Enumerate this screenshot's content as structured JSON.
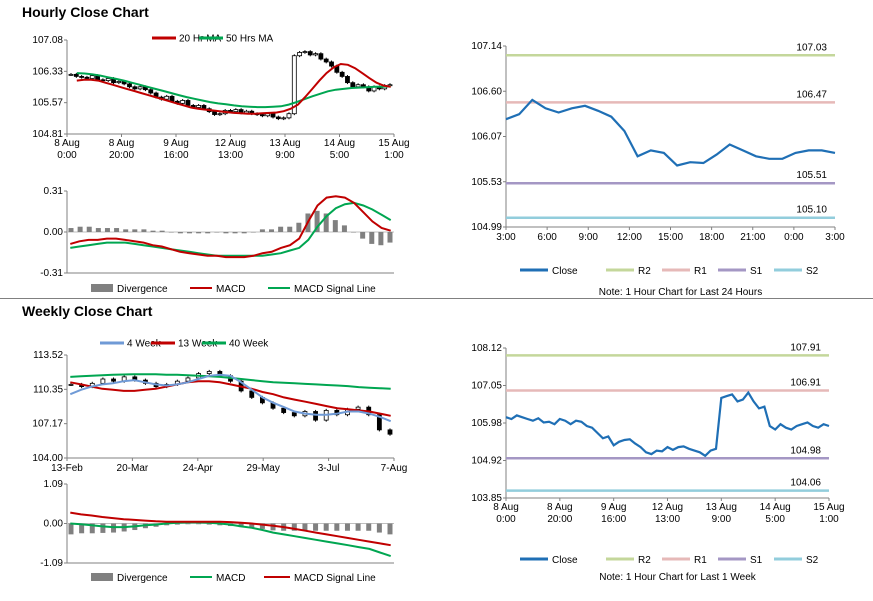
{
  "sections": {
    "hourly_title": "Hourly Close Chart",
    "weekly_title": "Weekly Close Chart"
  },
  "colors": {
    "close": "#1f6fb5",
    "ma20": "#c00000",
    "ma50": "#00a651",
    "r2": "#c4d79b",
    "r1": "#e6b9b8",
    "s1": "#a497c4",
    "s2": "#92cddc",
    "divergence": "#808080",
    "wk4": "#6f9ad6",
    "wk13": "#c00000",
    "wk40": "#00a651"
  },
  "chart_data": [
    {
      "id": "hourly_price",
      "type": "candlestick-line",
      "ylim": [
        104.81,
        107.08
      ],
      "yticks": [
        "107.08",
        "106.33",
        "105.57",
        "104.81"
      ],
      "xticks": [
        [
          "8 Aug",
          "0:00"
        ],
        [
          "8 Aug",
          "20:00"
        ],
        [
          "9 Aug",
          "16:00"
        ],
        [
          "12 Aug",
          "13:00"
        ],
        [
          "13 Aug",
          "9:00"
        ],
        [
          "14 Aug",
          "5:00"
        ],
        [
          "15 Aug",
          "1:00"
        ]
      ],
      "legend": [
        "20 Hr MA",
        "50 Hrs MA"
      ],
      "closes": [
        106.25,
        106.2,
        106.18,
        106.15,
        106.22,
        106.12,
        106.1,
        106.15,
        106.05,
        106.08,
        106.02,
        105.95,
        105.9,
        105.95,
        105.88,
        105.8,
        105.7,
        105.65,
        105.72,
        105.6,
        105.55,
        105.62,
        105.5,
        105.45,
        105.5,
        105.42,
        105.35,
        105.28,
        105.3,
        105.38,
        105.35,
        105.4,
        105.32,
        105.36,
        105.3,
        105.28,
        105.25,
        105.3,
        105.22,
        105.18,
        105.2,
        105.3,
        106.7,
        106.78,
        106.8,
        106.72,
        106.75,
        106.62,
        106.55,
        106.45,
        106.3,
        106.2,
        106.05,
        105.95,
        106.0,
        105.95,
        105.85,
        105.95,
        105.9,
        105.98,
        106.0
      ],
      "ma20": [
        106.1,
        106.12,
        106.12,
        106.1,
        106.05,
        106.0,
        105.95,
        105.9,
        105.85,
        105.8,
        105.75,
        105.7,
        105.65,
        105.6,
        105.55,
        105.5,
        105.45,
        105.42,
        105.4,
        105.38,
        105.36,
        105.34,
        105.32,
        105.31,
        105.3,
        105.3,
        105.31,
        105.32,
        105.33,
        105.36,
        105.42,
        105.52,
        105.7,
        105.9,
        106.1,
        106.28,
        106.42,
        106.5,
        106.48,
        106.4,
        106.28,
        106.16,
        106.05,
        105.98,
        105.95
      ],
      "ma50": [
        106.28,
        106.27,
        106.25,
        106.22,
        106.18,
        106.14,
        106.1,
        106.05,
        106.0,
        105.95,
        105.9,
        105.85,
        105.8,
        105.75,
        105.7,
        105.66,
        105.62,
        105.58,
        105.55,
        105.53,
        105.5,
        105.48,
        105.47,
        105.46,
        105.46,
        105.47,
        105.48,
        105.52,
        105.58,
        105.65,
        105.72,
        105.78,
        105.84,
        105.88,
        105.9,
        105.92,
        105.93,
        105.94,
        105.95,
        105.95,
        105.96
      ]
    },
    {
      "id": "hourly_macd",
      "type": "macd",
      "ylim": [
        -0.31,
        0.31
      ],
      "yticks": [
        "0.31",
        "0.00",
        "-0.31"
      ],
      "legend": [
        "Divergence",
        "MACD",
        "MACD Signal Line"
      ],
      "macd": [
        -0.09,
        -0.07,
        -0.06,
        -0.06,
        -0.05,
        -0.05,
        -0.06,
        -0.07,
        -0.08,
        -0.1,
        -0.11,
        -0.13,
        -0.15,
        -0.16,
        -0.17,
        -0.18,
        -0.18,
        -0.19,
        -0.19,
        -0.19,
        -0.18,
        -0.16,
        -0.15,
        -0.12,
        -0.1,
        -0.05,
        0.08,
        0.2,
        0.26,
        0.27,
        0.26,
        0.22,
        0.15,
        0.08,
        0.03,
        0.01
      ],
      "signal": [
        -0.12,
        -0.11,
        -0.1,
        -0.09,
        -0.08,
        -0.08,
        -0.08,
        -0.09,
        -0.1,
        -0.11,
        -0.12,
        -0.13,
        -0.14,
        -0.15,
        -0.16,
        -0.17,
        -0.18,
        -0.18,
        -0.18,
        -0.18,
        -0.18,
        -0.18,
        -0.17,
        -0.16,
        -0.14,
        -0.12,
        -0.06,
        0.04,
        0.12,
        0.18,
        0.21,
        0.22,
        0.2,
        0.17,
        0.13,
        0.09
      ]
    },
    {
      "id": "hourly_24h",
      "type": "line",
      "ylim": [
        104.99,
        107.14
      ],
      "yticks": [
        "107.14",
        "106.60",
        "106.07",
        "105.53",
        "104.99"
      ],
      "xticks": [
        "3:00",
        "6:00",
        "9:00",
        "12:00",
        "15:00",
        "18:00",
        "21:00",
        "0:00",
        "3:00"
      ],
      "close": [
        106.27,
        106.33,
        106.5,
        106.4,
        106.35,
        106.4,
        106.43,
        106.37,
        106.3,
        106.13,
        105.83,
        105.9,
        105.87,
        105.72,
        105.76,
        105.75,
        105.85,
        105.97,
        105.9,
        105.83,
        105.8,
        105.8,
        105.87,
        105.9,
        105.9,
        105.87
      ],
      "levels": {
        "R2": 107.03,
        "R1": 106.47,
        "S1": 105.51,
        "S2": 105.1
      },
      "level_labels": {
        "R2": "107.03",
        "R1": "106.47",
        "S1": "105.51",
        "S2": "105.10"
      },
      "legend": [
        "Close",
        "R2",
        "R1",
        "S1",
        "S2"
      ],
      "note": "Note: 1 Hour Chart for Last 24 Hours"
    },
    {
      "id": "weekly_price",
      "type": "candlestick-line",
      "ylim": [
        104.0,
        113.52
      ],
      "yticks": [
        "113.52",
        "110.35",
        "107.17",
        "104.00"
      ],
      "xticks": [
        "13-Feb",
        "20-Mar",
        "24-Apr",
        "29-May",
        "3-Jul",
        "7-Aug"
      ],
      "legend": [
        "4 Week",
        "13 Week",
        "40 Week"
      ],
      "closes": [
        110.8,
        110.6,
        110.9,
        111.3,
        111.1,
        111.5,
        111.2,
        110.9,
        110.6,
        110.8,
        111.1,
        111.4,
        111.8,
        112.0,
        111.6,
        111.1,
        110.2,
        109.6,
        109.1,
        108.6,
        108.2,
        107.9,
        108.3,
        107.5,
        108.4,
        108.0,
        108.5,
        108.7,
        108.0,
        106.6,
        106.2
      ],
      "wk4": [
        109.9,
        110.3,
        110.6,
        110.8,
        110.9,
        111.1,
        111.2,
        111.0,
        110.8,
        110.7,
        110.8,
        111.0,
        111.3,
        111.6,
        111.7,
        111.6,
        111.0,
        110.3,
        109.6,
        109.1,
        108.7,
        108.3,
        108.1,
        108.0,
        108.0,
        108.1,
        108.3,
        108.3,
        108.1,
        107.8,
        107.4
      ],
      "wk13": [
        111.0,
        110.8,
        110.6,
        110.4,
        110.3,
        110.2,
        110.2,
        110.3,
        110.4,
        110.6,
        110.8,
        111.0,
        111.1,
        111.1,
        111.0,
        110.8,
        110.6,
        110.4,
        110.1,
        109.9,
        109.6,
        109.4,
        109.2,
        109.0,
        108.8,
        108.6,
        108.5,
        108.4,
        108.3,
        108.1,
        107.9
      ],
      "wk40": [
        111.5,
        111.55,
        111.6,
        111.65,
        111.7,
        111.72,
        111.75,
        111.75,
        111.75,
        111.7,
        111.7,
        111.65,
        111.6,
        111.55,
        111.5,
        111.4,
        111.3,
        111.2,
        111.1,
        111.0,
        110.95,
        110.9,
        110.85,
        110.8,
        110.75,
        110.7,
        110.65,
        110.55,
        110.5,
        110.45,
        110.4
      ]
    },
    {
      "id": "weekly_macd",
      "type": "macd",
      "ylim": [
        -1.09,
        1.09
      ],
      "yticks": [
        "1.09",
        "0.00",
        "-1.09"
      ],
      "legend": [
        "Divergence",
        "MACD",
        "MACD Signal Line"
      ],
      "macd": [
        0.0,
        -0.02,
        -0.05,
        -0.08,
        -0.1,
        -0.1,
        -0.08,
        -0.05,
        -0.03,
        0.0,
        0.02,
        0.03,
        0.03,
        0.02,
        0.0,
        -0.03,
        -0.08,
        -0.12,
        -0.18,
        -0.25,
        -0.3,
        -0.35,
        -0.4,
        -0.45,
        -0.5,
        -0.55,
        -0.6,
        -0.65,
        -0.7,
        -0.8,
        -0.9
      ],
      "signal": [
        0.3,
        0.25,
        0.22,
        0.18,
        0.15,
        0.12,
        0.1,
        0.08,
        0.06,
        0.05,
        0.05,
        0.05,
        0.05,
        0.05,
        0.05,
        0.04,
        0.02,
        0.0,
        -0.03,
        -0.06,
        -0.1,
        -0.15,
        -0.2,
        -0.25,
        -0.3,
        -0.35,
        -0.4,
        -0.45,
        -0.5,
        -0.55,
        -0.6
      ]
    },
    {
      "id": "hourly_week",
      "type": "line",
      "ylim": [
        103.85,
        108.12
      ],
      "yticks": [
        "108.12",
        "107.05",
        "105.98",
        "104.92",
        "103.85"
      ],
      "xticks": [
        [
          "8 Aug",
          "0:00"
        ],
        [
          "8 Aug",
          "20:00"
        ],
        [
          "9 Aug",
          "16:00"
        ],
        [
          "12 Aug",
          "13:00"
        ],
        [
          "13 Aug",
          "9:00"
        ],
        [
          "14 Aug",
          "5:00"
        ],
        [
          "15 Aug",
          "1:00"
        ]
      ],
      "close": [
        106.15,
        106.1,
        106.2,
        106.15,
        106.1,
        106.05,
        106.12,
        106.0,
        106.02,
        105.95,
        106.1,
        106.05,
        105.95,
        106.05,
        106.02,
        105.9,
        105.85,
        105.7,
        105.55,
        105.6,
        105.35,
        105.45,
        105.5,
        105.52,
        105.4,
        105.3,
        105.15,
        105.1,
        105.2,
        105.18,
        105.3,
        105.22,
        105.3,
        105.32,
        105.25,
        105.2,
        105.15,
        105.05,
        105.2,
        105.25,
        106.7,
        106.75,
        106.8,
        106.6,
        106.65,
        106.85,
        106.6,
        106.4,
        106.45,
        105.9,
        105.8,
        105.95,
        105.85,
        105.8,
        105.9,
        105.95,
        106.0,
        105.9,
        105.85,
        105.95,
        105.9
      ],
      "levels": {
        "R2": 107.91,
        "R1": 106.91,
        "S1": 104.98,
        "S2": 104.06
      },
      "level_labels": {
        "R2": "107.91",
        "R1": "106.91",
        "S1": "104.98",
        "S2": "104.06"
      },
      "legend": [
        "Close",
        "R2",
        "R1",
        "S1",
        "S2"
      ],
      "note": "Note: 1 Hour Chart for Last 1 Week"
    }
  ]
}
